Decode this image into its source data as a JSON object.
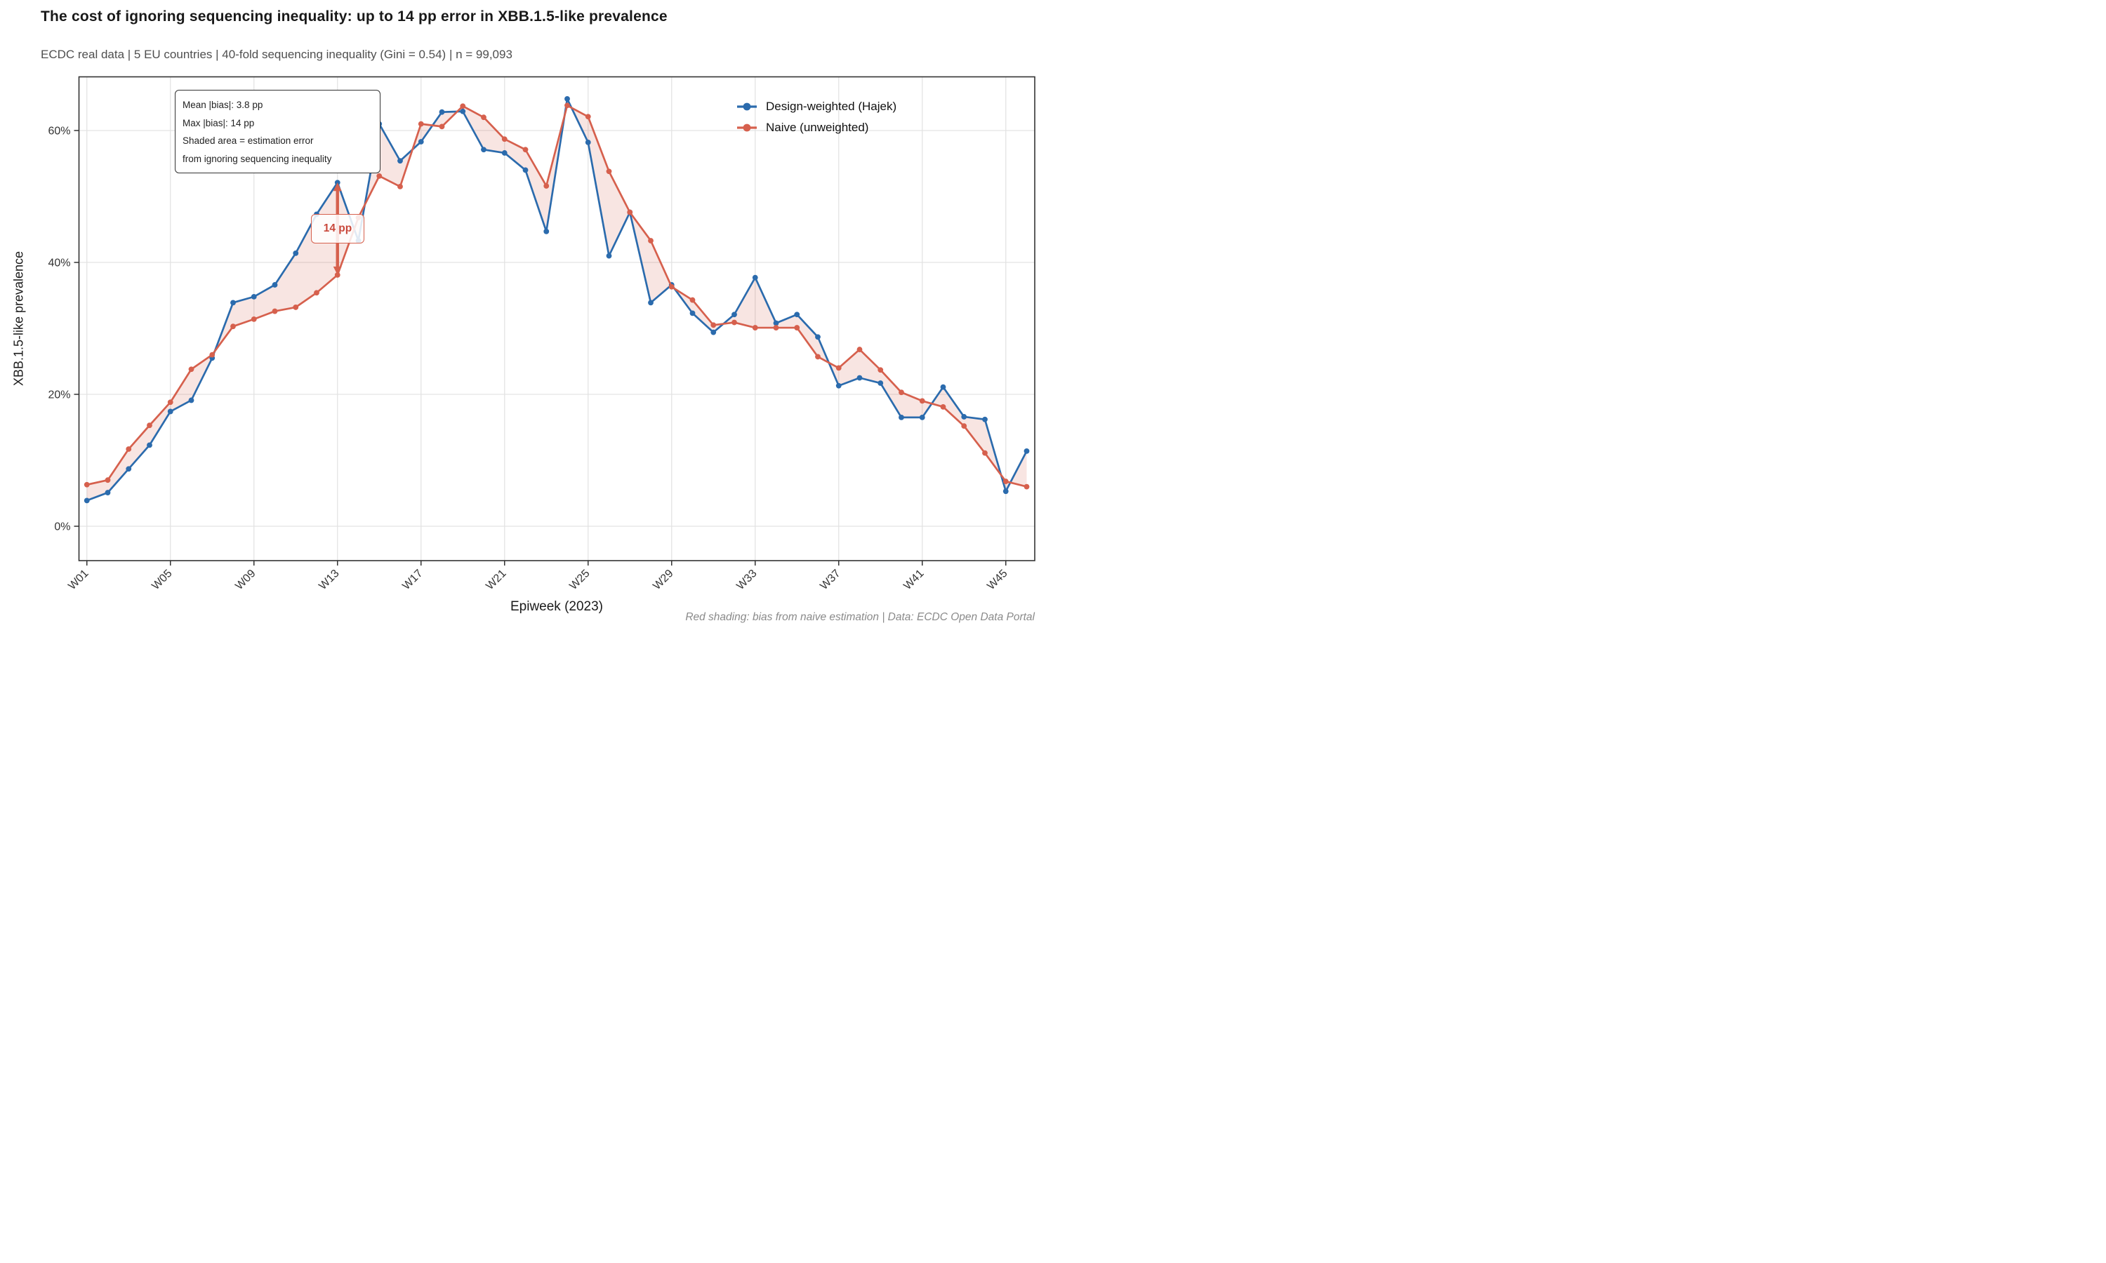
{
  "header": {
    "title": "The cost of ignoring sequencing inequality: up to 14 pp error in XBB.1.5-like prevalence",
    "subtitle": "ECDC real data | 5 EU countries | 40-fold sequencing inequality (Gini = 0.54) | n = 99,093"
  },
  "annotation_box": {
    "lines": [
      "Mean |bias|: 3.8 pp",
      "Max |bias|: 14 pp",
      "Shaded area = estimation error",
      "from ignoring sequencing inequality"
    ]
  },
  "legend": {
    "items": [
      {
        "label": "Design-weighted (Hajek)",
        "color": "#2b6bad"
      },
      {
        "label": "Naive (unweighted)",
        "color": "#d6604d"
      }
    ]
  },
  "axes": {
    "x_title": "Epiweek (2023)",
    "y_title": "XBB.1.5-like prevalence",
    "x_tick_weeks": [
      1,
      5,
      9,
      13,
      17,
      21,
      25,
      29,
      33,
      37,
      41,
      45
    ],
    "x_tick_labels": [
      "W01",
      "W05",
      "W09",
      "W13",
      "W17",
      "W21",
      "W25",
      "W29",
      "W33",
      "W37",
      "W41",
      "W45"
    ],
    "y_ticks": [
      0,
      20,
      40,
      60
    ],
    "y_tick_labels": [
      "0%",
      "20%",
      "40%",
      "60%"
    ]
  },
  "caption": "Red shading: bias from naive estimation | Data: ECDC Open Data Portal",
  "colors": {
    "hajek": "#2b6bad",
    "naive": "#d6604d",
    "band": "rgba(214,96,77,0.16)",
    "grid": "#e3e3e3",
    "panel_border": "#333333",
    "tick": "#333333",
    "tick_text": "#333333",
    "maxbias_arrow": "#d6604d",
    "maxbias_text": "#c9473a"
  },
  "chart_data": {
    "type": "line",
    "x_labels": [
      "W01",
      "W02",
      "W03",
      "W04",
      "W05",
      "W06",
      "W07",
      "W08",
      "W09",
      "W10",
      "W11",
      "W12",
      "W13",
      "W14",
      "W15",
      "W16",
      "W17",
      "W18",
      "W19",
      "W20",
      "W21",
      "W22",
      "W23",
      "W24",
      "W25",
      "W26",
      "W27",
      "W28",
      "W29",
      "W30",
      "W31",
      "W32",
      "W33",
      "W34",
      "W35",
      "W36",
      "W37",
      "W38",
      "W39",
      "W40",
      "W41",
      "W42",
      "W43",
      "W44",
      "W45",
      "W46"
    ],
    "series": [
      {
        "name": "Design-weighted (Hajek)",
        "values": [
          3.9,
          5.1,
          8.7,
          12.3,
          17.4,
          19.1,
          25.5,
          33.9,
          34.8,
          36.6,
          41.4,
          47.3,
          52.1,
          43.3,
          61.0,
          55.4,
          58.3,
          62.8,
          62.9,
          57.1,
          56.6,
          54.0,
          44.7,
          64.8,
          58.2,
          41.0,
          47.6,
          33.9,
          36.6,
          32.3,
          29.4,
          32.1,
          37.7,
          30.8,
          32.1,
          28.7,
          21.3,
          22.5,
          21.7,
          16.5,
          16.5,
          21.1,
          16.6,
          16.2,
          5.3,
          11.4
        ]
      },
      {
        "name": "Naive (unweighted)",
        "values": [
          6.3,
          7.0,
          11.7,
          15.3,
          18.8,
          23.8,
          26.0,
          30.3,
          31.4,
          32.6,
          33.2,
          35.4,
          38.1,
          46.8,
          53.1,
          51.5,
          61.0,
          60.6,
          63.7,
          62.0,
          58.7,
          57.1,
          51.6,
          63.8,
          62.1,
          53.8,
          47.6,
          43.3,
          36.3,
          34.3,
          30.5,
          30.9,
          30.1,
          30.1,
          30.1,
          25.7,
          24.0,
          26.8,
          23.7,
          20.3,
          19.0,
          18.1,
          15.2,
          11.1,
          6.8,
          6.0
        ]
      }
    ],
    "title": "The cost of ignoring sequencing inequality: up to 14 pp error in XBB.1.5-like prevalence",
    "xlabel": "Epiweek (2023)",
    "ylabel": "XBB.1.5-like prevalence",
    "ylim": [
      -5.2,
      68.2
    ],
    "grid": "major-only",
    "legend_position": "inside-top-right",
    "band": "shaded region between the two series (estimation error)",
    "max_bias": {
      "week_index": 13,
      "week_label": "W13",
      "from_value": 38.1,
      "to_value": 52.1,
      "label": "14 pp"
    },
    "stats": {
      "mean_abs_bias_pp": 3.8,
      "max_abs_bias_pp": 14
    }
  }
}
